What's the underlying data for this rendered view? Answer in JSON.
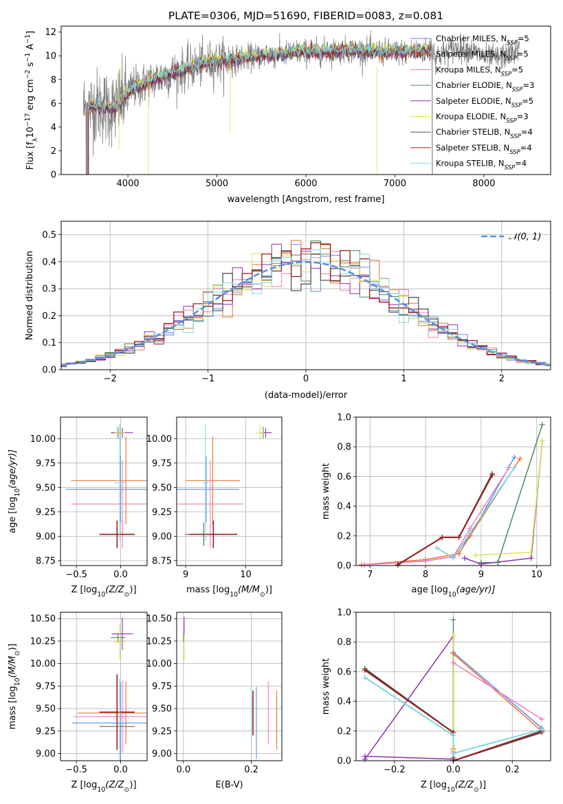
{
  "colors": {
    "Chabrier MILES": "#5b8ee6",
    "Salpeter MILES": "#e8702a",
    "Kroupa MILES": "#f07ac0",
    "Chabrier ELODIE": "#4a8a5a",
    "Salpeter ELODIE": "#8e2fae",
    "Kroupa ELODIE": "#dbe34a",
    "Chabrier STELIB": "#555555",
    "Salpeter STELIB": "#9b1b1b",
    "Kroupa STELIB": "#7fd6de",
    "data": "#808080",
    "normal": "#5b8ee6"
  },
  "chart_data": [
    {
      "type": "line",
      "title": "PLATE=0306, MJD=51690, FIBERID=0083, z=0.081",
      "xlabel": "wavelength [Angstrom, rest frame]",
      "ylabel": "Flux [f",
      "ylabel_parts": [
        "Flux [f",
        "λ",
        "10",
        "−17",
        " erg cm",
        "−2",
        " s",
        "−1",
        " A",
        "−1",
        "]"
      ],
      "xlim": [
        3250,
        8750
      ],
      "ylim": [
        0,
        12.5
      ],
      "xticks": [
        4000,
        5000,
        6000,
        7000,
        8000
      ],
      "yticks": [
        0,
        2,
        4,
        6,
        8,
        10,
        12
      ],
      "legend_position": "right",
      "legend": [
        {
          "name": "Chabrier MILES, N",
          "sub": "SSP",
          "tail": "=5"
        },
        {
          "name": "Salpeter MILES, N",
          "sub": "SSP",
          "tail": "=5"
        },
        {
          "name": "Kroupa MILES, N",
          "sub": "SSP",
          "tail": "=5"
        },
        {
          "name": "Chabrier ELODIE, N",
          "sub": "SSP",
          "tail": "=3"
        },
        {
          "name": "Salpeter ELODIE, N",
          "sub": "SSP",
          "tail": "=5"
        },
        {
          "name": "Kroupa ELODIE, N",
          "sub": "SSP",
          "tail": "=3"
        },
        {
          "name": "Chabrier STELIB, N",
          "sub": "SSP",
          "tail": "=4"
        },
        {
          "name": "Salpeter STELIB, N",
          "sub": "SSP",
          "tail": "=4"
        },
        {
          "name": "Kroupa STELIB, N",
          "sub": "SSP",
          "tail": "=4"
        }
      ],
      "continuum": {
        "x": [
          3550,
          3650,
          3750,
          3850,
          3950,
          4050,
          4150,
          4300,
          4500,
          4700,
          4900,
          5100,
          5300,
          5500,
          5700,
          5900,
          6100,
          6300,
          6500,
          6700,
          6900,
          7100,
          7300,
          7450
        ],
        "y": [
          5.6,
          5.8,
          5.7,
          5.5,
          6.4,
          7.3,
          7.5,
          8.0,
          8.5,
          9.0,
          9.4,
          9.6,
          9.8,
          10.0,
          10.1,
          10.3,
          10.3,
          10.4,
          10.5,
          10.4,
          10.3,
          10.3,
          10.4,
          10.4
        ]
      },
      "data_range": [
        3500,
        8400
      ]
    },
    {
      "type": "histogram",
      "xlabel": "(data-model)/error",
      "ylabel": "Normed distribution",
      "xlim": [
        -2.5,
        2.5
      ],
      "ylim": [
        0,
        0.55
      ],
      "xticks": [
        -2,
        -1,
        0,
        1,
        2
      ],
      "yticks": [
        0.0,
        0.1,
        0.2,
        0.3,
        0.4,
        0.5
      ],
      "grid": true,
      "legend": [
        {
          "name": "𝒩(0, 1)"
        }
      ],
      "legend_position": "top-right",
      "bin_width": 0.1
    },
    {
      "type": "errorbar",
      "xlabel": "Z [log",
      "xlabel_parts": [
        "Z [log",
        "10",
        "(Z/Z",
        "⊙",
        ")]"
      ],
      "ylabel_parts": [
        "age  [log",
        "10",
        "(age/yr)]"
      ],
      "xlim": [
        -0.68,
        0.3
      ],
      "ylim": [
        8.7,
        10.22
      ],
      "xticks": [
        -0.5,
        0.0,
        0.5
      ],
      "xticklabels": [
        "−0.5",
        "0.0",
        ""
      ],
      "yticks": [
        8.75,
        9.0,
        9.25,
        9.5,
        9.75,
        10.0
      ],
      "points": [
        {
          "model": "Chabrier MILES",
          "x": 0.0,
          "xerr": 0.62,
          "y": 9.48,
          "yerr": 0.34
        },
        {
          "model": "Salpeter MILES",
          "x": 0.06,
          "xerr": 0.62,
          "y": 9.57,
          "yerr": 0.45
        },
        {
          "model": "Kroupa MILES",
          "x": 0.02,
          "xerr": 0.58,
          "y": 9.33,
          "yerr": 0.45
        },
        {
          "model": "Chabrier ELODIE",
          "x": -0.03,
          "xerr": 0.08,
          "y": 10.06,
          "yerr": 0.06
        },
        {
          "model": "Salpeter ELODIE",
          "x": 0.02,
          "xerr": 0.12,
          "y": 10.06,
          "yerr": 0.05
        },
        {
          "model": "Kroupa ELODIE",
          "x": -0.01,
          "xerr": 0.06,
          "y": 10.06,
          "yerr": 0.08
        },
        {
          "model": "Chabrier STELIB",
          "x": -0.04,
          "xerr": 0.18,
          "y": 9.02,
          "yerr": 0.12
        },
        {
          "model": "Salpeter STELIB",
          "x": -0.04,
          "xerr": 0.2,
          "y": 9.02,
          "yerr": 0.14
        },
        {
          "model": "Kroupa STELIB",
          "x": -0.01,
          "xerr": 0.06,
          "y": 9.55,
          "yerr": 0.6
        }
      ]
    },
    {
      "type": "errorbar",
      "xlabel_parts": [
        "mass [log",
        "10",
        "(M/M",
        "⊙",
        ")]"
      ],
      "xlim": [
        8.85,
        10.6
      ],
      "ylim": [
        8.7,
        10.22
      ],
      "xticks": [
        9,
        10
      ],
      "yticks": [
        8.75,
        9.0,
        9.25,
        9.5,
        9.75,
        10.0
      ],
      "points": [
        {
          "model": "Chabrier MILES",
          "x": 9.34,
          "xerr": 0.55,
          "y": 9.48,
          "yerr": 0.34
        },
        {
          "model": "Salpeter MILES",
          "x": 9.45,
          "xerr": 0.45,
          "y": 9.57,
          "yerr": 0.45
        },
        {
          "model": "Kroupa MILES",
          "x": 9.41,
          "xerr": 0.55,
          "y": 9.33,
          "yerr": 0.45
        },
        {
          "model": "Chabrier ELODIE",
          "x": 10.29,
          "xerr": 0.04,
          "y": 10.06,
          "yerr": 0.06
        },
        {
          "model": "Salpeter ELODIE",
          "x": 10.33,
          "xerr": 0.1,
          "y": 10.06,
          "yerr": 0.05
        },
        {
          "model": "Kroupa ELODIE",
          "x": 10.24,
          "xerr": 0.07,
          "y": 10.06,
          "yerr": 0.08
        },
        {
          "model": "Chabrier STELIB",
          "x": 9.3,
          "xerr": 0.3,
          "y": 9.02,
          "yerr": 0.12
        },
        {
          "model": "Salpeter STELIB",
          "x": 9.46,
          "xerr": 0.4,
          "y": 9.02,
          "yerr": 0.14
        },
        {
          "model": "Kroupa STELIB",
          "x": 9.33,
          "xerr": 0.05,
          "y": 9.55,
          "yerr": 0.6
        }
      ]
    },
    {
      "type": "line",
      "xlabel_parts": [
        "age  [log",
        "10",
        "(age/yr)]"
      ],
      "ylabel": "mass weight",
      "xlim": [
        6.75,
        10.25
      ],
      "ylim": [
        0,
        1.0
      ],
      "xticks": [
        7,
        8,
        9,
        10
      ],
      "yticks": [
        0.0,
        0.2,
        0.4,
        0.6,
        0.8,
        1.0
      ],
      "grid": true,
      "series": [
        {
          "model": "Chabrier MILES",
          "x": [
            6.9,
            8.0,
            8.5,
            8.8,
            9.6
          ],
          "y": [
            0.005,
            0.03,
            0.06,
            0.2,
            0.73
          ]
        },
        {
          "model": "Salpeter MILES",
          "x": [
            6.85,
            8.0,
            8.6,
            8.8,
            9.7
          ],
          "y": [
            0.005,
            0.04,
            0.08,
            0.2,
            0.72
          ]
        },
        {
          "model": "Kroupa MILES",
          "x": [
            6.9,
            8.0,
            8.5,
            8.8,
            9.5
          ],
          "y": [
            0.005,
            0.03,
            0.06,
            0.25,
            0.66
          ]
        },
        {
          "model": "Chabrier ELODIE",
          "x": [
            9.0,
            9.3,
            10.1
          ],
          "y": [
            0.02,
            0.02,
            0.95
          ]
        },
        {
          "model": "Salpeter ELODIE",
          "x": [
            8.7,
            9.0,
            9.9,
            10.1
          ],
          "y": [
            0.05,
            0.01,
            0.05,
            0.84
          ]
        },
        {
          "model": "Kroupa ELODIE",
          "x": [
            8.9,
            9.9,
            10.1
          ],
          "y": [
            0.07,
            0.09,
            0.84
          ]
        },
        {
          "model": "Chabrier STELIB",
          "x": [
            7.5,
            8.3,
            8.6,
            9.2
          ],
          "y": [
            0.005,
            0.19,
            0.19,
            0.62
          ]
        },
        {
          "model": "Salpeter STELIB",
          "x": [
            7.5,
            8.3,
            8.6,
            9.2
          ],
          "y": [
            0.005,
            0.19,
            0.19,
            0.61
          ]
        },
        {
          "model": "Kroupa STELIB",
          "x": [
            8.2,
            8.5,
            8.8,
            9.6
          ],
          "y": [
            0.12,
            0.05,
            0.22,
            0.66
          ]
        }
      ]
    },
    {
      "type": "errorbar",
      "xlabel_parts": [
        "Z [log",
        "10",
        "(Z/Z",
        "⊙",
        ")]"
      ],
      "ylabel_parts": [
        "mass [log",
        "10",
        "(M/M",
        "⊙",
        ")]"
      ],
      "xlim": [
        -0.68,
        0.3
      ],
      "ylim": [
        8.92,
        10.57
      ],
      "xticks": [
        -0.5,
        0.0,
        0.5
      ],
      "xticklabels": [
        "−0.5",
        "0.0",
        ""
      ],
      "yticks": [
        9.0,
        9.25,
        9.5,
        9.75,
        10.0,
        10.25,
        10.5
      ],
      "points": [
        {
          "model": "Chabrier MILES",
          "x": 0.0,
          "xerr": 0.55,
          "y": 9.34,
          "yerr": 0.45
        },
        {
          "model": "Salpeter MILES",
          "x": 0.06,
          "xerr": 0.55,
          "y": 9.45,
          "yerr": 0.35
        },
        {
          "model": "Kroupa MILES",
          "x": 0.02,
          "xerr": 0.55,
          "y": 9.41,
          "yerr": 0.4
        },
        {
          "model": "Chabrier ELODIE",
          "x": -0.03,
          "xerr": 0.08,
          "y": 10.29,
          "yerr": 0.05
        },
        {
          "model": "Salpeter ELODIE",
          "x": 0.02,
          "xerr": 0.12,
          "y": 10.33,
          "yerr": 0.18
        },
        {
          "model": "Kroupa ELODIE",
          "x": -0.01,
          "xerr": 0.07,
          "y": 10.24,
          "yerr": 0.2
        },
        {
          "model": "Chabrier STELIB",
          "x": -0.04,
          "xerr": 0.2,
          "y": 9.3,
          "yerr": 0.05
        },
        {
          "model": "Salpeter STELIB",
          "x": -0.04,
          "xerr": 0.2,
          "y": 9.46,
          "yerr": 0.42
        },
        {
          "model": "Kroupa STELIB",
          "x": -0.01,
          "xerr": 0.06,
          "y": 9.33,
          "yerr": 0.5
        }
      ]
    },
    {
      "type": "errorbar",
      "xlabel": "E(B-V)",
      "xlim": [
        -0.02,
        0.29
      ],
      "ylim": [
        8.92,
        10.57
      ],
      "xticks": [
        0.0,
        0.2
      ],
      "yticks": [
        9.0,
        9.25,
        9.5,
        9.75,
        10.0,
        10.25,
        10.5
      ],
      "points": [
        {
          "model": "Chabrier MILES",
          "x": 0.215,
          "y": 9.34,
          "yerr": 0.4
        },
        {
          "model": "Salpeter MILES",
          "x": 0.275,
          "y": 9.37,
          "yerr": 0.33
        },
        {
          "model": "Kroupa MILES",
          "x": 0.25,
          "y": 9.45,
          "yerr": 0.35
        },
        {
          "model": "Chabrier ELODIE",
          "x": 0.0,
          "y": 10.29,
          "yerr": 0.05
        },
        {
          "model": "Salpeter ELODIE",
          "x": 0.002,
          "y": 10.4,
          "yerr": 0.12
        },
        {
          "model": "Kroupa ELODIE",
          "x": 0.002,
          "y": 10.18,
          "yerr": 0.15
        },
        {
          "model": "Chabrier STELIB",
          "x": 0.2,
          "y": 9.45,
          "yerr": 0.2
        },
        {
          "model": "Salpeter STELIB",
          "x": 0.205,
          "y": 9.45,
          "yerr": 0.25
        },
        {
          "model": "Kroupa STELIB",
          "x": 0.2,
          "y": 9.45,
          "yerr": 0.3
        }
      ]
    },
    {
      "type": "line",
      "xlabel_parts": [
        "Z [log",
        "10",
        "(Z/Z",
        "⊙",
        ")]"
      ],
      "ylabel": "mass weight",
      "xlim": [
        -0.33,
        0.33
      ],
      "ylim": [
        0,
        1.0
      ],
      "xticks": [
        -0.2,
        0.0,
        0.2
      ],
      "xticklabels": [
        "−0.2",
        "0.0",
        "0.2"
      ],
      "yticks": [
        0.0,
        0.2,
        0.4,
        0.6,
        0.8,
        1.0
      ],
      "grid": true,
      "series": [
        {
          "model": "Chabrier MILES",
          "x": [
            0.0,
            0.0,
            0.3
          ],
          "y": [
            0.05,
            0.73,
            0.22
          ]
        },
        {
          "model": "Salpeter MILES",
          "x": [
            0.0,
            0.0,
            0.3
          ],
          "y": [
            0.08,
            0.72,
            0.2
          ]
        },
        {
          "model": "Kroupa MILES",
          "x": [
            0.0,
            0.0,
            0.3
          ],
          "y": [
            0.06,
            0.66,
            0.28
          ]
        },
        {
          "model": "Chabrier ELODIE",
          "x": [
            0.0,
            0.0
          ],
          "y": [
            0.02,
            0.95
          ]
        },
        {
          "model": "Salpeter ELODIE",
          "x": [
            -0.3,
            0.0,
            0.0,
            -0.3
          ],
          "y": [
            0.01,
            0.84,
            0.01,
            0.03
          ]
        },
        {
          "model": "Kroupa ELODIE",
          "x": [
            0.0,
            0.0
          ],
          "y": [
            0.07,
            0.84
          ]
        },
        {
          "model": "Chabrier STELIB",
          "x": [
            -0.3,
            0.0,
            0.0,
            0.3
          ],
          "y": [
            0.62,
            0.19,
            0.0,
            0.19
          ]
        },
        {
          "model": "Salpeter STELIB",
          "x": [
            -0.3,
            0.0,
            0.0,
            0.3
          ],
          "y": [
            0.61,
            0.19,
            0.0,
            0.2
          ]
        },
        {
          "model": "Kroupa STELIB",
          "x": [
            -0.3,
            0.0,
            0.0,
            0.3
          ],
          "y": [
            0.56,
            0.17,
            0.05,
            0.21
          ]
        }
      ]
    }
  ]
}
